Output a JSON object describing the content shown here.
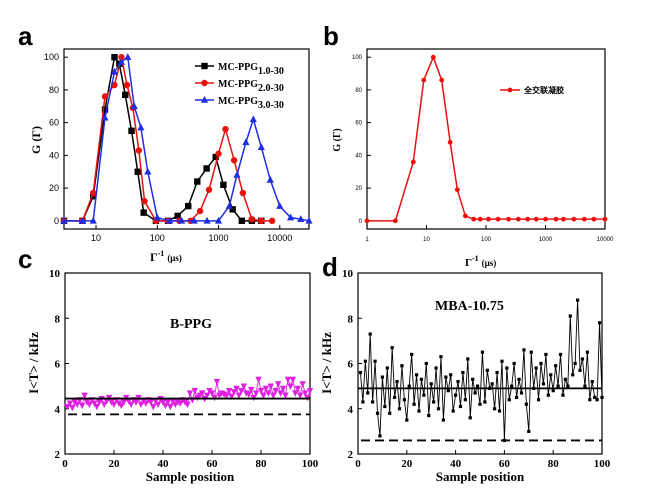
{
  "panels": {
    "a": "a",
    "b": "b",
    "c": "c",
    "d": "d"
  },
  "chart_data": [
    {
      "id": "a",
      "type": "line",
      "xscale": "log",
      "xlabel_main": "Γ",
      "xlabel_sup": "-1",
      "xlabel_unit": "(μs)",
      "ylabel": "G (Γ)",
      "xlim": [
        3,
        30000
      ],
      "ylim": [
        -5,
        105
      ],
      "xticks": [
        "10",
        "100",
        "1000",
        "10000"
      ],
      "yticks": [
        "0",
        "20",
        "40",
        "60",
        "80",
        "100"
      ],
      "series": [
        {
          "name": "MC-PPG",
          "sub": "1.0-30",
          "color": "#000000",
          "marker": "square",
          "x": [
            3,
            6,
            9,
            14,
            20,
            24,
            30,
            38,
            48,
            60,
            95,
            150,
            215,
            320,
            450,
            640,
            900,
            1200,
            1700,
            2400,
            3500,
            5000
          ],
          "y": [
            0,
            0,
            15,
            68,
            100,
            96,
            77,
            55,
            30,
            5,
            0,
            0,
            3,
            9,
            24,
            32,
            39,
            22,
            7,
            0,
            0,
            0
          ]
        },
        {
          "name": "MC-PPG",
          "sub": "2.0-30",
          "color": "#e8120c",
          "marker": "circle",
          "x": [
            3,
            6,
            9,
            14,
            20,
            26,
            32,
            40,
            50,
            62,
            95,
            150,
            230,
            350,
            500,
            700,
            1000,
            1300,
            1800,
            2500,
            3500,
            5000,
            7500
          ],
          "y": [
            0,
            0,
            17,
            76,
            83,
            100,
            83,
            69,
            43,
            12,
            0,
            0,
            0,
            0,
            6,
            19,
            41,
            56,
            37,
            17,
            1,
            0,
            0
          ]
        },
        {
          "name": "MC-PPG",
          "sub": "3.0-30",
          "color": "#1f2ee0",
          "marker": "triangle",
          "x": [
            3,
            6,
            9,
            14,
            20,
            26,
            33,
            42,
            54,
            70,
            100,
            160,
            250,
            400,
            650,
            1000,
            1500,
            2000,
            2800,
            3700,
            5000,
            7000,
            10000,
            15000,
            22000,
            30000
          ],
          "y": [
            0,
            0,
            0,
            63,
            91,
            97,
            100,
            70,
            57,
            30,
            2,
            0,
            0,
            0,
            0,
            0,
            9,
            28,
            48,
            62,
            45,
            25,
            9,
            2,
            1,
            0
          ]
        }
      ]
    },
    {
      "id": "b",
      "type": "line",
      "xscale": "log",
      "xlabel_main": "Γ",
      "xlabel_sup": "-1",
      "xlabel_unit": "(μs)",
      "ylabel": "G (Γ)",
      "xlim": [
        1,
        10000
      ],
      "ylim": [
        -5,
        105
      ],
      "xticks": [
        "1",
        "10",
        "100",
        "1000",
        "10000"
      ],
      "yticks": [
        "0",
        "20",
        "40",
        "60",
        "80",
        "100"
      ],
      "legend": "全交联凝胶",
      "color": "#e8120c",
      "series": [
        {
          "name": "全交联凝胶",
          "x": [
            1,
            3,
            6,
            9,
            13,
            18,
            25,
            33,
            45,
            62,
            80,
            110,
            160,
            240,
            350,
            500,
            700,
            1000,
            1500,
            2000,
            3000,
            4500,
            6500,
            10000
          ],
          "y": [
            0,
            0,
            36,
            86,
            100,
            86,
            48,
            19,
            3,
            1,
            1,
            1,
            1,
            1,
            1,
            1,
            1,
            1,
            1,
            1,
            1,
            1,
            1,
            1
          ]
        }
      ]
    },
    {
      "id": "c",
      "type": "line",
      "xlabel": "Sample position",
      "ylabel": "I<T> / kHz",
      "xlim": [
        0,
        100
      ],
      "ylim": [
        2,
        10
      ],
      "xticks": [
        "0",
        "20",
        "40",
        "60",
        "80",
        "100"
      ],
      "yticks": [
        "2",
        "4",
        "6",
        "8",
        "10"
      ],
      "annotation": "B-PPG",
      "color": "#e020e0",
      "solid_line": 4.45,
      "dashed_line": 3.75,
      "series": [
        {
          "name": "B-PPG",
          "values": [
            4.1,
            4.25,
            4.05,
            4.3,
            4.2,
            4.4,
            4.15,
            4.6,
            4.3,
            4.2,
            4.4,
            4.25,
            4.1,
            4.3,
            4.45,
            4.2,
            4.35,
            4.5,
            4.3,
            4.2,
            4.4,
            4.25,
            4.15,
            4.3,
            4.5,
            4.35,
            4.2,
            4.4,
            4.3,
            4.5,
            4.2,
            4.35,
            4.25,
            4.4,
            4.3,
            4.1,
            4.35,
            4.2,
            4.45,
            4.3,
            4.15,
            4.3,
            4.1,
            4.35,
            4.2,
            4.3,
            4.25,
            4.4,
            4.3,
            4.2,
            4.7,
            4.4,
            4.8,
            4.5,
            4.6,
            4.7,
            4.45,
            4.6,
            4.8,
            4.7,
            4.5,
            5.2,
            4.6,
            4.7,
            4.65,
            4.6,
            4.8,
            4.55,
            4.75,
            4.9,
            4.6,
            4.8,
            5.0,
            4.7,
            4.65,
            4.85,
            4.5,
            4.7,
            5.3,
            4.8,
            4.6,
            4.9,
            4.7,
            5.0,
            4.6,
            4.8,
            5.1,
            4.7,
            4.9,
            4.6,
            5.3,
            5.0,
            5.3,
            4.7,
            4.9,
            4.6,
            5.1,
            4.7,
            4.5,
            4.8
          ]
        }
      ]
    },
    {
      "id": "d",
      "type": "line",
      "xlabel": "Sample position",
      "ylabel": "I<T> / kHz",
      "xlim": [
        0,
        100
      ],
      "ylim": [
        2,
        10
      ],
      "xticks": [
        "0",
        "20",
        "40",
        "60",
        "80",
        "100"
      ],
      "yticks": [
        "2",
        "4",
        "6",
        "8",
        "10"
      ],
      "annotation": "MBA-10.75",
      "color": "#000000",
      "solid_line": 4.9,
      "dashed_line": 2.6,
      "series": [
        {
          "name": "MBA-10.75",
          "values": [
            5.6,
            4.3,
            6.1,
            4.7,
            7.3,
            4.3,
            6.1,
            3.8,
            2.8,
            5.4,
            4.1,
            5.8,
            3.8,
            6.7,
            4.5,
            5.2,
            4.0,
            5.9,
            4.4,
            3.5,
            5.0,
            6.4,
            4.2,
            5.5,
            3.9,
            5.3,
            4.6,
            6.0,
            3.7,
            5.1,
            4.3,
            5.8,
            4.0,
            6.3,
            3.5,
            5.4,
            4.8,
            5.5,
            3.9,
            4.6,
            5.2,
            4.1,
            5.6,
            4.4,
            6.2,
            3.6,
            5.3,
            4.7,
            5.0,
            4.2,
            6.5,
            4.3,
            5.7,
            4.9,
            5.1,
            4.0,
            5.6,
            3.9,
            6.1,
            2.6,
            5.8,
            4.4,
            5.0,
            6.0,
            4.5,
            5.3,
            4.7,
            6.6,
            4.2,
            3.0,
            6.5,
            4.9,
            5.8,
            4.4,
            6.0,
            5.1,
            6.4,
            4.6,
            5.5,
            4.8,
            5.9,
            5.0,
            6.4,
            4.6,
            5.3,
            5.0,
            8.1,
            5.5,
            6.0,
            8.8,
            5.7,
            6.2,
            5.0,
            6.5,
            4.4,
            5.2,
            4.5,
            4.4,
            7.8,
            4.5
          ]
        }
      ]
    }
  ]
}
